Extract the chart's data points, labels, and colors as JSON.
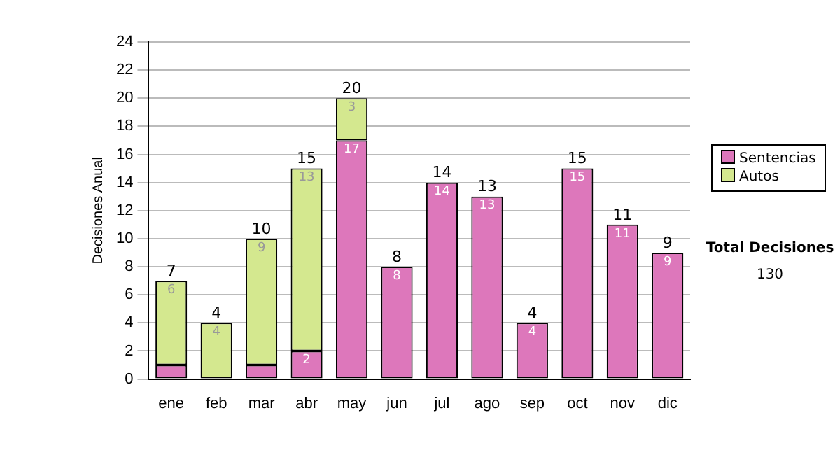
{
  "chart_data": {
    "type": "bar",
    "stacked": true,
    "ylabel": "Decisiones Anual",
    "categories": [
      "ene",
      "feb",
      "mar",
      "abr",
      "may",
      "jun",
      "jul",
      "ago",
      "sep",
      "oct",
      "nov",
      "dic"
    ],
    "series": [
      {
        "name": "Sentencias",
        "color": "#dd77bb",
        "values": [
          1,
          null,
          1,
          2,
          17,
          8,
          14,
          13,
          4,
          15,
          11,
          9
        ],
        "value_labels": [
          null,
          null,
          null,
          "2",
          "17",
          "8",
          "14",
          "13",
          "4",
          "15",
          "11",
          "9"
        ]
      },
      {
        "name": "Autos",
        "color": "#d4e88f",
        "values": [
          6,
          4,
          9,
          13,
          3,
          null,
          null,
          null,
          null,
          null,
          null,
          null
        ],
        "value_labels": [
          "6",
          "4",
          "9",
          "13",
          "3",
          null,
          null,
          null,
          null,
          null,
          null,
          null
        ]
      }
    ],
    "totals": [
      "7",
      "4",
      "10",
      "15",
      "20",
      "8",
      "14",
      "13",
      "4",
      "15",
      "11",
      "9"
    ],
    "ylim": [
      0,
      24
    ],
    "yticks": [
      0,
      2,
      4,
      6,
      8,
      10,
      12,
      14,
      16,
      18,
      20,
      22,
      24
    ],
    "grid": "y",
    "legend": "right",
    "annotations": [
      "Total Decisiones",
      "130"
    ]
  }
}
